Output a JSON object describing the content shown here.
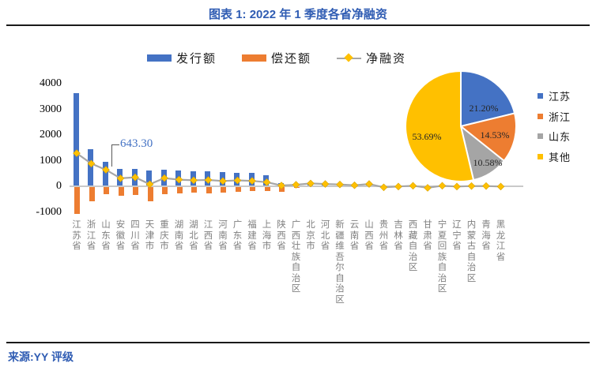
{
  "header": {
    "title": "图表 1: 2022 年 1 季度各省净融资"
  },
  "footer": {
    "source": "来源:YY 评级"
  },
  "colors": {
    "issue_blue": "#4472C4",
    "repay_orange": "#ED7D31",
    "net_line_gray": "#A6A6A6",
    "net_marker_yellow": "#FFC000",
    "pie_gray": "#A5A5A5",
    "pie_other_yellow": "#FFC000",
    "title_blue": "#2F5CB3",
    "annotation_blue": "#4472C4"
  },
  "chart_data": [
    {
      "type": "bar",
      "title": "2022 年 1 季度各省净融资",
      "categories": [
        "江苏省",
        "浙江省",
        "山东省",
        "安徽省",
        "四川省",
        "天津市",
        "重庆市",
        "湖南省",
        "湖北省",
        "江西省",
        "河南省",
        "广东省",
        "福建省",
        "上海市",
        "陕西省",
        "广西壮族自治区",
        "北京市",
        "河北省",
        "新疆维吾尔自治区",
        "云南省",
        "山西省",
        "贵州省",
        "吉林省",
        "西藏自治区",
        "甘肃省",
        "宁夏回族自治区",
        "辽宁省",
        "内蒙古自治区",
        "青海省",
        "黑龙江省"
      ],
      "series": [
        {
          "name": "发行额",
          "type": "bar",
          "color": "#4472C4",
          "values": [
            3630,
            1450,
            950,
            690,
            680,
            620,
            650,
            615,
            590,
            585,
            560,
            535,
            515,
            435,
            130,
            95,
            130,
            110,
            90,
            70,
            100,
            40,
            30,
            40,
            25,
            35,
            20,
            25,
            20,
            15
          ]
        },
        {
          "name": "偿还额",
          "type": "bar",
          "color": "#ED7D31",
          "values": [
            -1090,
            -575,
            -310,
            -375,
            -345,
            -595,
            -295,
            -275,
            -255,
            -275,
            -255,
            -225,
            -195,
            -175,
            -215,
            -50,
            -45,
            -40,
            -35,
            -45,
            -30,
            -70,
            -45,
            -30,
            -80,
            -25,
            -35,
            -20,
            -15,
            -30
          ]
        },
        {
          "name": "净融资",
          "type": "line",
          "color": "#A6A6A6",
          "marker": "diamond",
          "marker_color": "#FFC000",
          "values": [
            1289,
            883,
            643.3,
            310,
            350,
            80,
            320,
            260,
            235,
            245,
            205,
            230,
            210,
            160,
            30,
            60,
            110,
            90,
            70,
            40,
            90,
            -40,
            -10,
            20,
            -60,
            20,
            -10,
            10,
            10,
            -10
          ]
        }
      ],
      "ylim": [
        -1000,
        4000
      ],
      "yticks": [
        4000,
        3000,
        2000,
        1000,
        0,
        -1000
      ],
      "grid": false,
      "legend_position": "top",
      "annotation": {
        "text": "643.30",
        "category": "山东省",
        "series": "净融资",
        "value": 643.3
      }
    },
    {
      "type": "pie",
      "labels": [
        "江苏",
        "浙江",
        "山东",
        "其他"
      ],
      "values": [
        21.2,
        14.53,
        10.58,
        53.69
      ],
      "value_labels": [
        "21.20%",
        "14.53%",
        "10.58%",
        "53.69%"
      ],
      "unit": "%",
      "colors": [
        "#4472C4",
        "#ED7D31",
        "#A5A5A5",
        "#FFC000"
      ],
      "legend_position": "right",
      "start_angle_deg": 0,
      "direction": "clockwise"
    }
  ]
}
